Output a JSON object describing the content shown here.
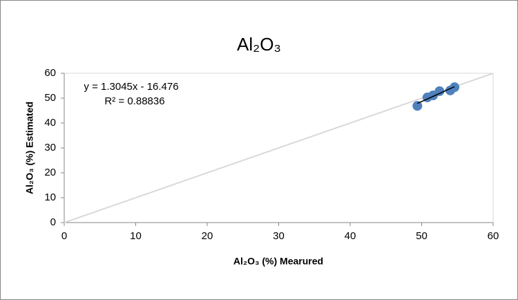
{
  "chart_data": {
    "type": "scatter",
    "title": "Al₂O₃",
    "x_label": "Al₂O₃ (%) Mearured",
    "y_label": "Al₂O₃  (%) Estimated",
    "annotations": [
      "y = 1.3045x - 16.476",
      "R² = 0.88836"
    ],
    "series": [
      {
        "color": "#4f81bd",
        "x": [
          49.4,
          50.8,
          51.6,
          52.5,
          54.0,
          54.6
        ],
        "values": [
          46.9,
          50.3,
          51.1,
          52.8,
          53.1,
          54.4
        ]
      }
    ],
    "xlim": [
      0,
      60
    ],
    "ylim": [
      0,
      60
    ],
    "xticks": [
      0,
      10,
      20,
      30,
      40,
      50,
      60
    ],
    "yticks": [
      0,
      10,
      20,
      30,
      40,
      50,
      60
    ],
    "trendline": true,
    "trendline_color": "#000000",
    "identity_line": true,
    "identity_line_color": "#d9d9d9"
  }
}
